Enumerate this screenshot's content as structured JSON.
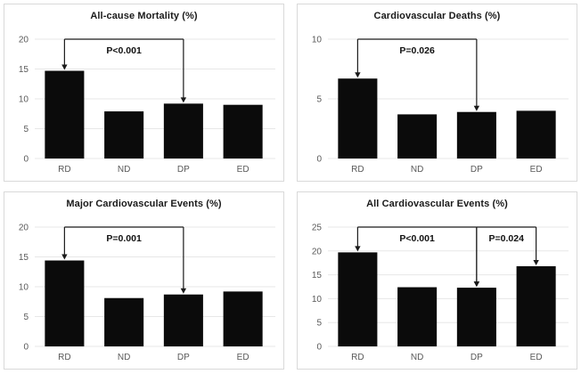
{
  "colors": {
    "bar": "#0b0b0b",
    "gridline": "#e7e7e7",
    "tick_label": "#595959",
    "panel_border": "#d9d9d9",
    "annotation": "#1a1a1a",
    "p_label": "#111111",
    "title": "#1a1a1a",
    "background": "#ffffff"
  },
  "chart_data": [
    {
      "type": "bar",
      "title": "All-cause Mortality (%)",
      "categories": [
        "RD",
        "ND",
        "DP",
        "ED"
      ],
      "values": [
        14.7,
        7.9,
        9.2,
        9.0
      ],
      "xlabel": "",
      "ylabel": "",
      "ylim": [
        0,
        20
      ],
      "yticks": [
        0,
        5,
        10,
        15,
        20
      ],
      "grid": true,
      "annotations": [
        {
          "label": "P<0.001",
          "y": 20,
          "from": "RD",
          "to": "DP",
          "drops": [
            "RD",
            "DP"
          ]
        }
      ]
    },
    {
      "type": "bar",
      "title": "Cardiovascular Deaths (%)",
      "categories": [
        "RD",
        "ND",
        "DP",
        "ED"
      ],
      "values": [
        6.7,
        3.7,
        3.9,
        4.0
      ],
      "xlabel": "",
      "ylabel": "",
      "ylim": [
        0,
        10
      ],
      "yticks": [
        0,
        5,
        10
      ],
      "grid": true,
      "annotations": [
        {
          "label": "P=0.026",
          "y": 10,
          "from": "RD",
          "to": "DP",
          "drops": [
            "RD",
            "DP"
          ]
        }
      ]
    },
    {
      "type": "bar",
      "title": "Major Cardiovascular Events (%)",
      "categories": [
        "RD",
        "ND",
        "DP",
        "ED"
      ],
      "values": [
        14.4,
        8.1,
        8.7,
        9.2
      ],
      "xlabel": "",
      "ylabel": "",
      "ylim": [
        0,
        20
      ],
      "yticks": [
        0,
        5,
        10,
        15,
        20
      ],
      "grid": true,
      "annotations": [
        {
          "label": "P=0.001",
          "y": 20,
          "from": "RD",
          "to": "DP",
          "drops": [
            "RD",
            "DP"
          ]
        }
      ]
    },
    {
      "type": "bar",
      "title": "All Cardiovascular Events (%)",
      "categories": [
        "RD",
        "ND",
        "DP",
        "ED"
      ],
      "values": [
        19.7,
        12.4,
        12.3,
        16.8
      ],
      "xlabel": "",
      "ylabel": "",
      "ylim": [
        0,
        25
      ],
      "yticks": [
        0,
        5,
        10,
        15,
        20,
        25
      ],
      "grid": true,
      "annotations": [
        {
          "label": "P<0.001",
          "y": 25,
          "from": "RD",
          "to": "DP",
          "drops": [
            "RD",
            "DP"
          ]
        },
        {
          "label": "P=0.024",
          "y": 25,
          "from": "DP",
          "to": "ED",
          "drops": [
            "DP",
            "ED"
          ]
        }
      ]
    }
  ]
}
